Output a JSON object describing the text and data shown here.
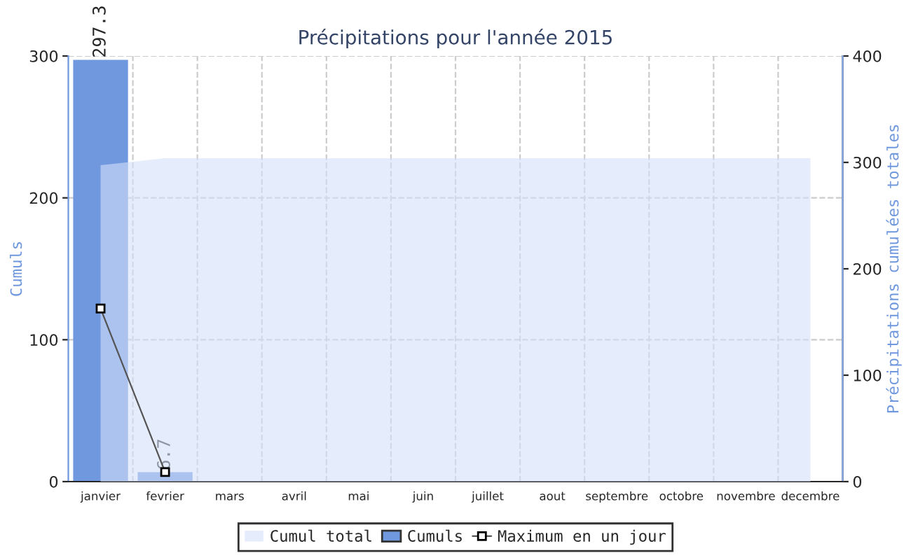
{
  "chart_data": {
    "type": "bar",
    "title": "Précipitations pour l'année 2015",
    "ylabel": "Cumuls",
    "y2label": "Précipitations cumulées totales",
    "categories": [
      "janvier",
      "fevrier",
      "mars",
      "avril",
      "mai",
      "juin",
      "juillet",
      "aout",
      "septembre",
      "octobre",
      "novembre",
      "decembre"
    ],
    "series": [
      {
        "name": "Cumul total",
        "type": "area",
        "axis": "y2",
        "color": "#d3e0f8",
        "values": [
          297.3,
          304.0,
          304.0,
          304.0,
          304.0,
          304.0,
          304.0,
          304.0,
          304.0,
          304.0,
          304.0,
          304.0
        ]
      },
      {
        "name": "Cumuls",
        "color": "#6f98de",
        "values": [
          297.3,
          6.7,
          0,
          0,
          0,
          0,
          0,
          0,
          0,
          0,
          0,
          0
        ],
        "value_labels": [
          "297.3",
          "6.7",
          null,
          null,
          null,
          null,
          null,
          null,
          null,
          null,
          null,
          null
        ]
      },
      {
        "name": "Maximum en un jour",
        "type": "line",
        "color": "#555555",
        "marker": "square",
        "values": [
          122,
          6.7,
          null,
          null,
          null,
          null,
          null,
          null,
          null,
          null,
          null,
          null
        ]
      }
    ],
    "ylim": [
      0,
      300
    ],
    "yticks": [
      0,
      100,
      200,
      300
    ],
    "y2lim": [
      0,
      400
    ],
    "y2ticks": [
      0,
      100,
      200,
      300,
      400
    ],
    "grid": true,
    "legend": "bottom"
  }
}
